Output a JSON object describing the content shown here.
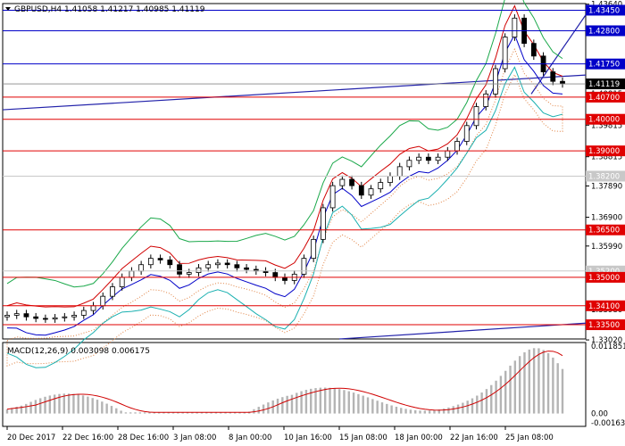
{
  "chart_data": [
    {
      "type": "candlestick",
      "title": "GBPUSD,H4",
      "ohlc": {
        "open": "1.41058",
        "high": "1.41217",
        "low": "1.40985",
        "close": "1.41119"
      },
      "current_price": "1.41119",
      "ylim": [
        1.3305,
        1.4366
      ],
      "y_ticks": [
        "1.43640",
        "1.42800",
        "1.41750",
        "1.40815",
        "1.39815",
        "1.38815",
        "1.37890",
        "1.36900",
        "1.35990",
        "1.35000",
        "1.33980",
        "1.33020"
      ],
      "horizontal_levels": [
        {
          "value": 1.4345,
          "label": "1.43450",
          "color": "#0000c8"
        },
        {
          "value": 1.428,
          "label": "1.42800",
          "color": "#0000c8"
        },
        {
          "value": 1.4175,
          "label": "1.41750",
          "color": "#0000c8"
        },
        {
          "value": 1.407,
          "label": "1.40700",
          "color": "#e00000"
        },
        {
          "value": 1.4,
          "label": "1.40000",
          "color": "#e00000"
        },
        {
          "value": 1.39,
          "label": "1.39000",
          "color": "#e00000"
        },
        {
          "value": 1.382,
          "label": "1.38200",
          "color": "#c8c8c8"
        },
        {
          "value": 1.365,
          "label": "1.36500",
          "color": "#e00000"
        },
        {
          "value": 1.352,
          "label": "1.35200",
          "color": "#c8c8c8"
        },
        {
          "value": 1.35,
          "label": "1.35000",
          "color": "#e00000"
        },
        {
          "value": 1.341,
          "label": "1.34100",
          "color": "#e00000"
        },
        {
          "value": 1.335,
          "label": "1.33500",
          "color": "#e00000"
        }
      ],
      "x_labels": [
        "20 Dec 2017",
        "22 Dec 16:00",
        "28 Dec 16:00",
        "3 Jan 08:00",
        "8 Jan 00:00",
        "10 Jan 16:00",
        "15 Jan 08:00",
        "18 Jan 00:00",
        "22 Jan 16:00",
        "25 Jan 08:00"
      ],
      "close_path": [
        1.338,
        1.3385,
        1.3375,
        1.337,
        1.3368,
        1.3372,
        1.3375,
        1.338,
        1.3395,
        1.341,
        1.344,
        1.347,
        1.35,
        1.352,
        1.354,
        1.356,
        1.3555,
        1.354,
        1.351,
        1.3515,
        1.353,
        1.354,
        1.3545,
        1.354,
        1.353,
        1.3525,
        1.352,
        1.3515,
        1.35,
        1.349,
        1.351,
        1.356,
        1.362,
        1.372,
        1.379,
        1.381,
        1.379,
        1.376,
        1.378,
        1.38,
        1.382,
        1.385,
        1.387,
        1.388,
        1.387,
        1.388,
        1.39,
        1.393,
        1.398,
        1.404,
        1.408,
        1.416,
        1.426,
        1.432,
        1.424,
        1.42,
        1.415,
        1.412,
        1.4112
      ],
      "colors": {
        "candle": "#000000",
        "upper_band": "#1aa84a",
        "ma": "#d00000",
        "lower_band": "#0000c8"
      }
    },
    {
      "type": "bar",
      "title": "MACD(12,26,9) 0.003098 0.006175",
      "y_ticks": [
        "0.011851",
        "0.00",
        "-0.001635"
      ],
      "ylim": [
        -0.001635,
        0.011851
      ],
      "colors": {
        "histogram": "#b4b4b4",
        "signal": "#d00000"
      }
    }
  ]
}
